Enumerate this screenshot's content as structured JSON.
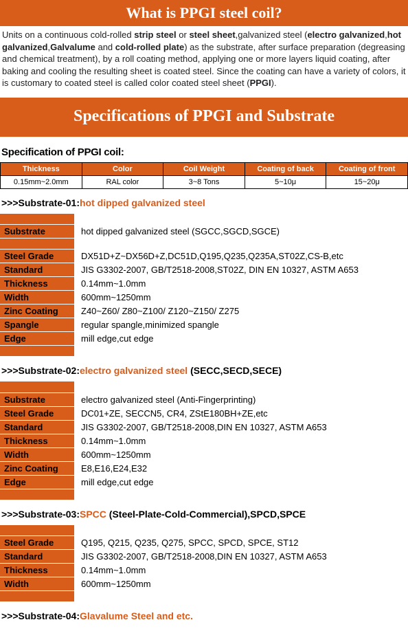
{
  "header": {
    "title": "What is PPGI steel coil?"
  },
  "intro": {
    "pre": "Units on a continuous cold-rolled ",
    "b1": "strip steel",
    "t1": " or ",
    "b2": "steel sheet",
    "t2": ",galvanized steel (",
    "b3": "electro galvanized",
    "t3": ",",
    "b4": "hot galvanized",
    "t4": ",",
    "b5": "Galvalume",
    "t5": " and ",
    "b6": "cold-rolled plate",
    "t6": ") as the substrate, after surface preparation (degreasing and chemical treatment), by a roll coating method, applying one or more layers liquid coating, after baking and cooling the resulting sheet is coated steel. Since the coating can have a variety of colors, it is customary to coated steel is called color coated steel sheet (",
    "b7": "PPGI",
    "t7": ")."
  },
  "specBanner": "Specifications of PPGI and Substrate",
  "specSubhead": "Specification of PPGI coil:",
  "specTable": {
    "headers": [
      "Thickness",
      "Color",
      "Coil Weight",
      "Coating of back",
      "Coating of front"
    ],
    "row": [
      "0.15mm~2.0mm",
      "RAL color",
      "3~8 Tons",
      "5~10μ",
      "15~20μ"
    ]
  },
  "sub01": {
    "prefix": ">>>Substrate-01:",
    "highlight": "hot dipped galvanized steel",
    "rows": [
      {
        "k": "Substrate",
        "v": "hot dipped galvanized steel (SGCC,SGCD,SGCE)"
      },
      {
        "k": "Steel Grade",
        "v": "DX51D+Z~DX56D+Z,DC51D,Q195,Q235,Q235A,ST02Z,CS-B,etc"
      },
      {
        "k": "Standard",
        "v": "JIS G3302-2007, GB/T2518-2008,ST02Z, DIN EN 10327, ASTM A653"
      },
      {
        "k": "Thickness",
        "v": "0.14mm~1.0mm"
      },
      {
        "k": "Width",
        "v": "600mm~1250mm"
      },
      {
        "k": "Zinc Coating",
        "v": "Z40~Z60/ Z80~Z100/ Z120~Z150/ Z275"
      },
      {
        "k": "Spangle",
        "v": "regular spangle,minimized spangle"
      },
      {
        "k": "Edge",
        "v": "mill edge,cut edge"
      }
    ]
  },
  "sub02": {
    "prefix": ">>>Substrate-02:",
    "highlight": "electro galvanized steel",
    "suffix": " (SECC,SECD,SECE)",
    "rows": [
      {
        "k": "Substrate",
        "v": "electro galvanized steel (Anti-Fingerprinting)"
      },
      {
        "k": "Steel Grade",
        "v": "DC01+ZE, SECCN5, CR4, ZStE180BH+ZE,etc"
      },
      {
        "k": "Standard",
        "v": "JIS G3302-2007, GB/T2518-2008,DIN EN 10327, ASTM A653"
      },
      {
        "k": "Thickness",
        "v": "0.14mm~1.0mm"
      },
      {
        "k": "Width",
        "v": "600mm~1250mm"
      },
      {
        "k": "Zinc Coating",
        "v": "E8,E16,E24,E32"
      },
      {
        "k": "Edge",
        "v": "mill edge,cut edge"
      }
    ]
  },
  "sub03": {
    "prefix": ">>>Substrate-03:",
    "highlight": "SPCC",
    "suffix": " (Steel-Plate-Cold-Commercial),SPCD,SPCE",
    "rows": [
      {
        "k": "Steel Grade",
        "v": "Q195, Q215, Q235, Q275, SPCC, SPCD, SPCE, ST12"
      },
      {
        "k": "Standard",
        "v": "JIS G3302-2007, GB/T2518-2008,DIN EN 10327, ASTM A653"
      },
      {
        "k": "Thickness",
        "v": "0.14mm~1.0mm"
      },
      {
        "k": "Width",
        "v": "600mm~1250mm"
      }
    ]
  },
  "sub04": {
    "prefix": ">>>Substrate-04:",
    "highlight": "Glavalume Steel and etc."
  }
}
